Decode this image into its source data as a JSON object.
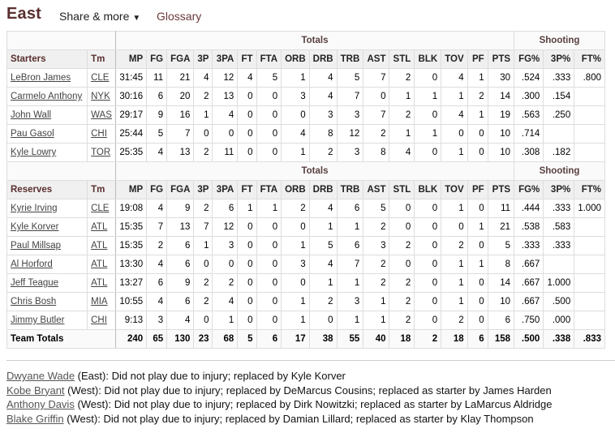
{
  "header": {
    "title": "East",
    "share_label": "Share & more",
    "glossary_label": "Glossary"
  },
  "groups": {
    "totals": "Totals",
    "shooting": "Shooting"
  },
  "columns": [
    "MP",
    "FG",
    "FGA",
    "3P",
    "3PA",
    "FT",
    "FTA",
    "ORB",
    "DRB",
    "TRB",
    "AST",
    "STL",
    "BLK",
    "TOV",
    "PF",
    "PTS",
    "FG%",
    "3P%",
    "FT%"
  ],
  "starters_label": "Starters",
  "reserves_label": "Reserves",
  "tm_label": "Tm",
  "starters": [
    {
      "name": "LeBron James",
      "tm": "CLE",
      "stats": [
        "31:45",
        "11",
        "21",
        "4",
        "12",
        "4",
        "5",
        "1",
        "4",
        "5",
        "7",
        "2",
        "0",
        "4",
        "1",
        "30",
        ".524",
        ".333",
        ".800"
      ]
    },
    {
      "name": "Carmelo Anthony",
      "tm": "NYK",
      "stats": [
        "30:16",
        "6",
        "20",
        "2",
        "13",
        "0",
        "0",
        "3",
        "4",
        "7",
        "0",
        "1",
        "1",
        "1",
        "2",
        "14",
        ".300",
        ".154",
        ""
      ]
    },
    {
      "name": "John Wall",
      "tm": "WAS",
      "stats": [
        "29:17",
        "9",
        "16",
        "1",
        "4",
        "0",
        "0",
        "0",
        "3",
        "3",
        "7",
        "2",
        "0",
        "4",
        "1",
        "19",
        ".563",
        ".250",
        ""
      ]
    },
    {
      "name": "Pau Gasol",
      "tm": "CHI",
      "stats": [
        "25:44",
        "5",
        "7",
        "0",
        "0",
        "0",
        "0",
        "4",
        "8",
        "12",
        "2",
        "1",
        "1",
        "0",
        "0",
        "10",
        ".714",
        "",
        ""
      ]
    },
    {
      "name": "Kyle Lowry",
      "tm": "TOR",
      "stats": [
        "25:35",
        "4",
        "13",
        "2",
        "11",
        "0",
        "0",
        "1",
        "2",
        "3",
        "8",
        "4",
        "0",
        "1",
        "0",
        "10",
        ".308",
        ".182",
        ""
      ]
    }
  ],
  "reserves": [
    {
      "name": "Kyrie Irving",
      "tm": "CLE",
      "stats": [
        "19:08",
        "4",
        "9",
        "2",
        "6",
        "1",
        "1",
        "2",
        "4",
        "6",
        "5",
        "0",
        "0",
        "1",
        "0",
        "11",
        ".444",
        ".333",
        "1.000"
      ]
    },
    {
      "name": "Kyle Korver",
      "tm": "ATL",
      "stats": [
        "15:35",
        "7",
        "13",
        "7",
        "12",
        "0",
        "0",
        "0",
        "1",
        "1",
        "2",
        "0",
        "0",
        "0",
        "1",
        "21",
        ".538",
        ".583",
        ""
      ]
    },
    {
      "name": "Paul Millsap",
      "tm": "ATL",
      "stats": [
        "15:35",
        "2",
        "6",
        "1",
        "3",
        "0",
        "0",
        "1",
        "5",
        "6",
        "3",
        "2",
        "0",
        "2",
        "0",
        "5",
        ".333",
        ".333",
        ""
      ]
    },
    {
      "name": "Al Horford",
      "tm": "ATL",
      "stats": [
        "13:30",
        "4",
        "6",
        "0",
        "0",
        "0",
        "0",
        "3",
        "4",
        "7",
        "2",
        "0",
        "0",
        "1",
        "1",
        "8",
        ".667",
        "",
        ""
      ]
    },
    {
      "name": "Jeff Teague",
      "tm": "ATL",
      "stats": [
        "13:27",
        "6",
        "9",
        "2",
        "2",
        "0",
        "0",
        "0",
        "1",
        "1",
        "2",
        "2",
        "0",
        "1",
        "0",
        "14",
        ".667",
        "1.000",
        ""
      ]
    },
    {
      "name": "Chris Bosh",
      "tm": "MIA",
      "stats": [
        "10:55",
        "4",
        "6",
        "2",
        "4",
        "0",
        "0",
        "1",
        "2",
        "3",
        "1",
        "2",
        "0",
        "1",
        "0",
        "10",
        ".667",
        ".500",
        ""
      ]
    },
    {
      "name": "Jimmy Butler",
      "tm": "CHI",
      "stats": [
        "9:13",
        "3",
        "4",
        "0",
        "1",
        "0",
        "0",
        "1",
        "0",
        "1",
        "1",
        "2",
        "0",
        "2",
        "0",
        "6",
        ".750",
        ".000",
        ""
      ]
    }
  ],
  "totals": {
    "label": "Team Totals",
    "stats": [
      "240",
      "65",
      "130",
      "23",
      "68",
      "5",
      "6",
      "17",
      "38",
      "55",
      "40",
      "18",
      "2",
      "18",
      "6",
      "158",
      ".500",
      ".338",
      ".833"
    ]
  },
  "notes": [
    {
      "name": "Dwyane Wade",
      "text": " (East): Did not play due to injury; replaced by Kyle Korver"
    },
    {
      "name": "Kobe Bryant",
      "text": " (West): Did not play due to injury; replaced by DeMarcus Cousins; replaced as starter by James Harden"
    },
    {
      "name": "Anthony Davis",
      "text": " (West): Did not play due to injury; replaced by Dirk Nowitzki; replaced as starter by LaMarcus Aldridge"
    },
    {
      "name": "Blake Griffin",
      "text": " (West): Did not play due to injury; replaced by Damian Lillard; replaced as starter by Klay Thompson"
    }
  ]
}
